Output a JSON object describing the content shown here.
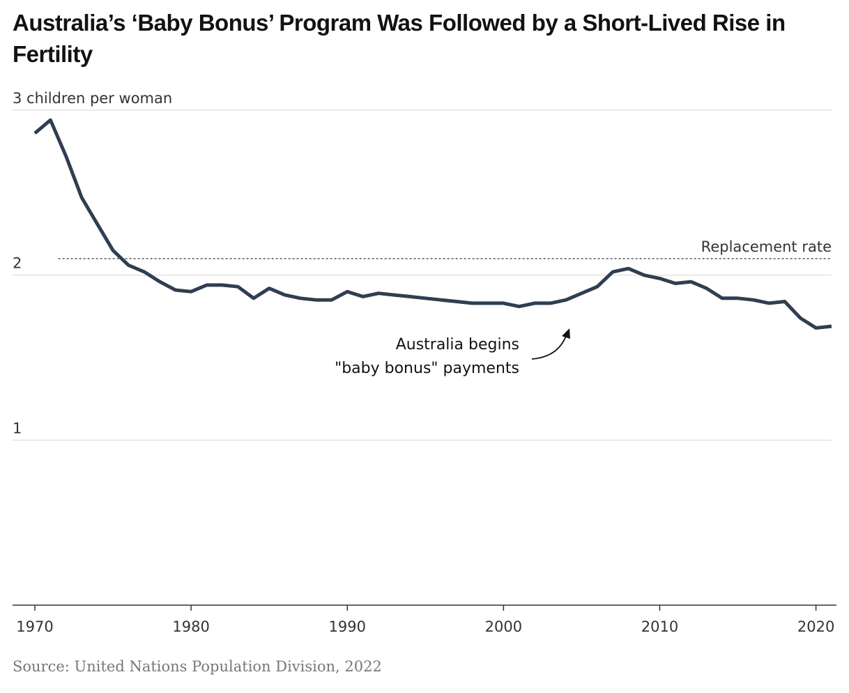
{
  "title": "Australia’s ‘Baby Bonus’ Program Was Followed by a Short-Lived Rise in Fertility",
  "source": "Source: United Nations Population Division, 2022",
  "colors": {
    "line": "#2f3e50",
    "grid": "#e2e2e2",
    "axis": "#333333"
  },
  "chart_data": {
    "type": "line",
    "title": "Australia’s ‘Baby Bonus’ Program Was Followed by a Short-Lived Rise in Fertility",
    "ylabel": "",
    "xlabel": "",
    "xlim": [
      1970,
      2021
    ],
    "ylim": [
      0,
      3
    ],
    "y_ticks": [
      {
        "value": 3,
        "label": "3 children per woman"
      },
      {
        "value": 2,
        "label": "2"
      },
      {
        "value": 1,
        "label": "1"
      }
    ],
    "x_ticks": [
      1970,
      1980,
      1990,
      2000,
      2010,
      2020
    ],
    "x_tick_labels": [
      "1970",
      "1980",
      "1990",
      "2000",
      "2010",
      "2020"
    ],
    "x": [
      1970,
      1971,
      1972,
      1973,
      1974,
      1975,
      1976,
      1977,
      1978,
      1979,
      1980,
      1981,
      1982,
      1983,
      1984,
      1985,
      1986,
      1987,
      1988,
      1989,
      1990,
      1991,
      1992,
      1993,
      1994,
      1995,
      1996,
      1997,
      1998,
      1999,
      2000,
      2001,
      2002,
      2003,
      2004,
      2005,
      2006,
      2007,
      2008,
      2009,
      2010,
      2011,
      2012,
      2013,
      2014,
      2015,
      2016,
      2017,
      2018,
      2019,
      2020,
      2021
    ],
    "values": [
      2.86,
      2.94,
      2.72,
      2.47,
      2.31,
      2.15,
      2.06,
      2.02,
      1.96,
      1.91,
      1.9,
      1.94,
      1.94,
      1.93,
      1.86,
      1.92,
      1.88,
      1.86,
      1.85,
      1.85,
      1.9,
      1.87,
      1.89,
      1.88,
      1.87,
      1.86,
      1.85,
      1.84,
      1.83,
      1.83,
      1.83,
      1.81,
      1.83,
      1.83,
      1.85,
      1.89,
      1.93,
      2.02,
      2.04,
      2.0,
      1.98,
      1.95,
      1.96,
      1.92,
      1.86,
      1.86,
      1.85,
      1.83,
      1.84,
      1.74,
      1.68,
      1.69
    ],
    "reference_line": {
      "value": 2.1,
      "label": "Replacement rate"
    },
    "annotation": {
      "lines": [
        "Australia begins",
        "\"baby bonus\" payments"
      ],
      "year": 2004
    },
    "grid": true
  }
}
